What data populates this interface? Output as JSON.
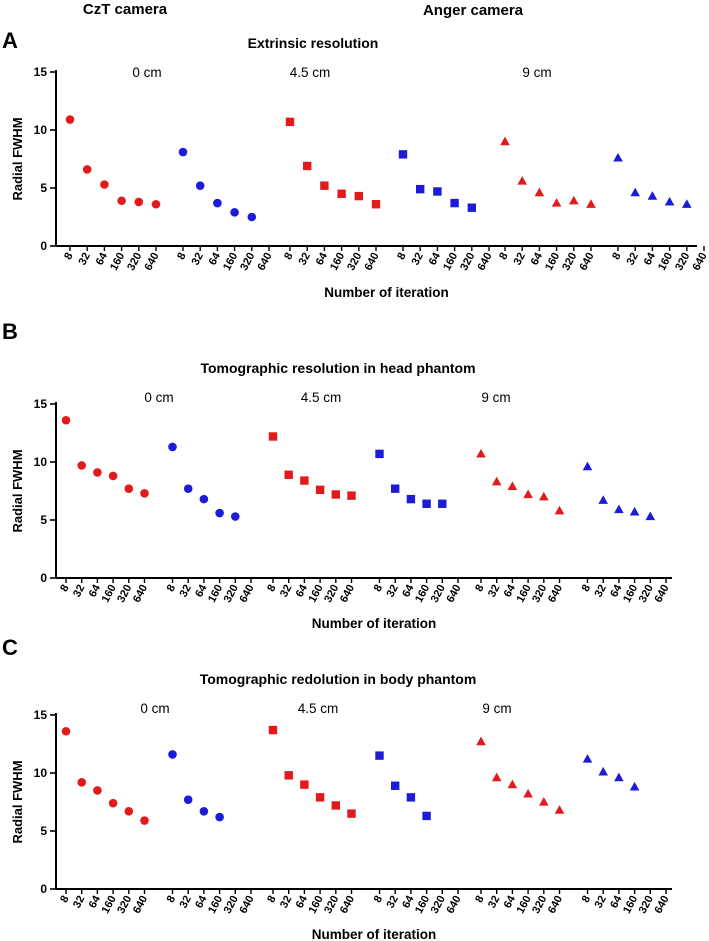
{
  "legend": {
    "czt": {
      "label": "CzT camera",
      "color": "#e31a1c"
    },
    "anger": {
      "label": "Anger camera",
      "color": "#1c1cd8"
    }
  },
  "chart_data": [
    {
      "type": "scatter",
      "panel": "A",
      "title": "Extrinsic resolution",
      "xlabel": "Number of iteration",
      "ylabel": "Radial FWHM",
      "ylim": [
        0,
        15
      ],
      "yticks": [
        0,
        5,
        10,
        15
      ],
      "categories": [
        "8",
        "32",
        "64",
        "160",
        "320",
        "640"
      ],
      "groups": [
        {
          "label": "0 cm",
          "marker": "circle",
          "series": [
            {
              "name": "CzT camera",
              "values": [
                10.9,
                6.6,
                5.3,
                3.9,
                3.8,
                3.6
              ]
            },
            {
              "name": "Anger camera",
              "values": [
                8.1,
                5.2,
                3.7,
                2.9,
                2.5,
                null
              ]
            }
          ]
        },
        {
          "label": "4.5 cm",
          "marker": "square",
          "series": [
            {
              "name": "CzT camera",
              "values": [
                10.7,
                6.9,
                5.2,
                4.5,
                4.3,
                3.6
              ]
            },
            {
              "name": "Anger camera",
              "values": [
                7.9,
                4.9,
                4.7,
                3.7,
                3.3,
                null
              ]
            }
          ]
        },
        {
          "label": "9 cm",
          "marker": "triangle",
          "series": [
            {
              "name": "CzT camera",
              "values": [
                9.0,
                5.6,
                4.6,
                3.7,
                3.9,
                3.6
              ]
            },
            {
              "name": "Anger camera",
              "values": [
                7.6,
                4.6,
                4.3,
                3.8,
                3.6,
                null
              ]
            }
          ]
        }
      ]
    },
    {
      "type": "scatter",
      "panel": "B",
      "title": "Tomographic resolution in head phantom",
      "xlabel": "Number of iteration",
      "ylabel": "Radial FWHM",
      "ylim": [
        0,
        15
      ],
      "yticks": [
        0,
        5,
        10,
        15
      ],
      "categories": [
        "8",
        "32",
        "64",
        "160",
        "320",
        "640"
      ],
      "groups": [
        {
          "label": "0 cm",
          "marker": "circle",
          "series": [
            {
              "name": "CzT camera",
              "values": [
                13.6,
                9.7,
                9.1,
                8.8,
                7.7,
                7.3
              ]
            },
            {
              "name": "Anger camera",
              "values": [
                11.3,
                7.7,
                6.8,
                5.6,
                5.3,
                null
              ]
            }
          ]
        },
        {
          "label": "4.5 cm",
          "marker": "square",
          "series": [
            {
              "name": "CzT camera",
              "values": [
                12.2,
                8.9,
                8.4,
                7.6,
                7.2,
                7.1
              ]
            },
            {
              "name": "Anger camera",
              "values": [
                10.7,
                7.7,
                6.8,
                6.4,
                6.4,
                null
              ]
            }
          ]
        },
        {
          "label": "9 cm",
          "marker": "triangle",
          "series": [
            {
              "name": "CzT camera",
              "values": [
                10.7,
                8.3,
                7.9,
                7.2,
                7.0,
                5.8
              ]
            },
            {
              "name": "Anger camera",
              "values": [
                9.6,
                6.7,
                5.9,
                5.7,
                5.3,
                null
              ]
            }
          ]
        }
      ]
    },
    {
      "type": "scatter",
      "panel": "C",
      "title": "Tomographic redolution in body phantom",
      "xlabel": "Number of iteration",
      "ylabel": "Radial FWHM",
      "ylim": [
        0,
        15
      ],
      "yticks": [
        0,
        5,
        10,
        15
      ],
      "categories": [
        "8",
        "32",
        "64",
        "160",
        "320",
        "640"
      ],
      "groups": [
        {
          "label": "0 cm",
          "marker": "circle",
          "series": [
            {
              "name": "CzT camera",
              "values": [
                13.6,
                9.2,
                8.5,
                7.4,
                6.7,
                5.9
              ]
            },
            {
              "name": "Anger camera",
              "values": [
                11.6,
                7.7,
                6.7,
                6.2,
                null,
                null
              ]
            }
          ]
        },
        {
          "label": "4.5 cm",
          "marker": "square",
          "series": [
            {
              "name": "CzT camera",
              "values": [
                13.7,
                9.8,
                9.0,
                7.9,
                7.2,
                6.5
              ]
            },
            {
              "name": "Anger camera",
              "values": [
                11.5,
                8.9,
                7.9,
                6.3,
                null,
                null
              ]
            }
          ]
        },
        {
          "label": "9 cm",
          "marker": "triangle",
          "series": [
            {
              "name": "CzT camera",
              "values": [
                12.7,
                9.6,
                9.0,
                8.2,
                7.5,
                6.8
              ]
            },
            {
              "name": "Anger camera",
              "values": [
                11.2,
                10.1,
                9.6,
                8.8,
                null,
                null
              ]
            }
          ]
        }
      ]
    }
  ]
}
